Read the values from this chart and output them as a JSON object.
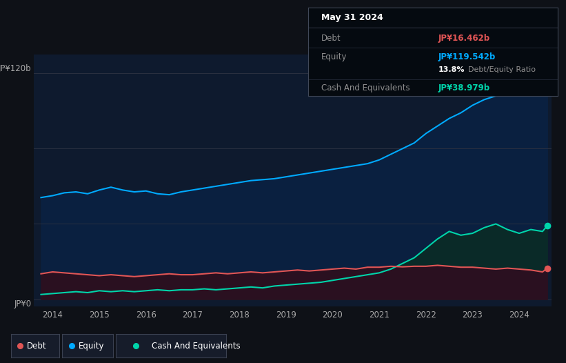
{
  "background_color": "#0e1117",
  "plot_bg_color": "#0e1a2e",
  "equity_color": "#00aaff",
  "equity_fill": "#0a2040",
  "debt_color": "#e05555",
  "debt_fill": "#2a1020",
  "cash_color": "#00d4aa",
  "cash_fill": "#0a2a28",
  "grid_color": "#2a3040",
  "tick_color": "#aaaaaa",
  "ylabel_top": "JP¥120b",
  "ylabel_bottom": "JP¥0",
  "ylim_max": 130,
  "ylim_min": -4,
  "tooltip_date": "May 31 2024",
  "tooltip_debt_label": "Debt",
  "tooltip_debt_value": "JP¥16.462b",
  "tooltip_equity_label": "Equity",
  "tooltip_equity_value": "JP¥119.542b",
  "tooltip_ratio": "13.8%",
  "tooltip_ratio_label": "Debt/Equity Ratio",
  "tooltip_cash_label": "Cash And Equivalents",
  "tooltip_cash_value": "JP¥38.979b",
  "legend_labels": [
    "Debt",
    "Equity",
    "Cash And Equivalents"
  ],
  "legend_bg": "#161c2a",
  "legend_border": "#3a4050"
}
